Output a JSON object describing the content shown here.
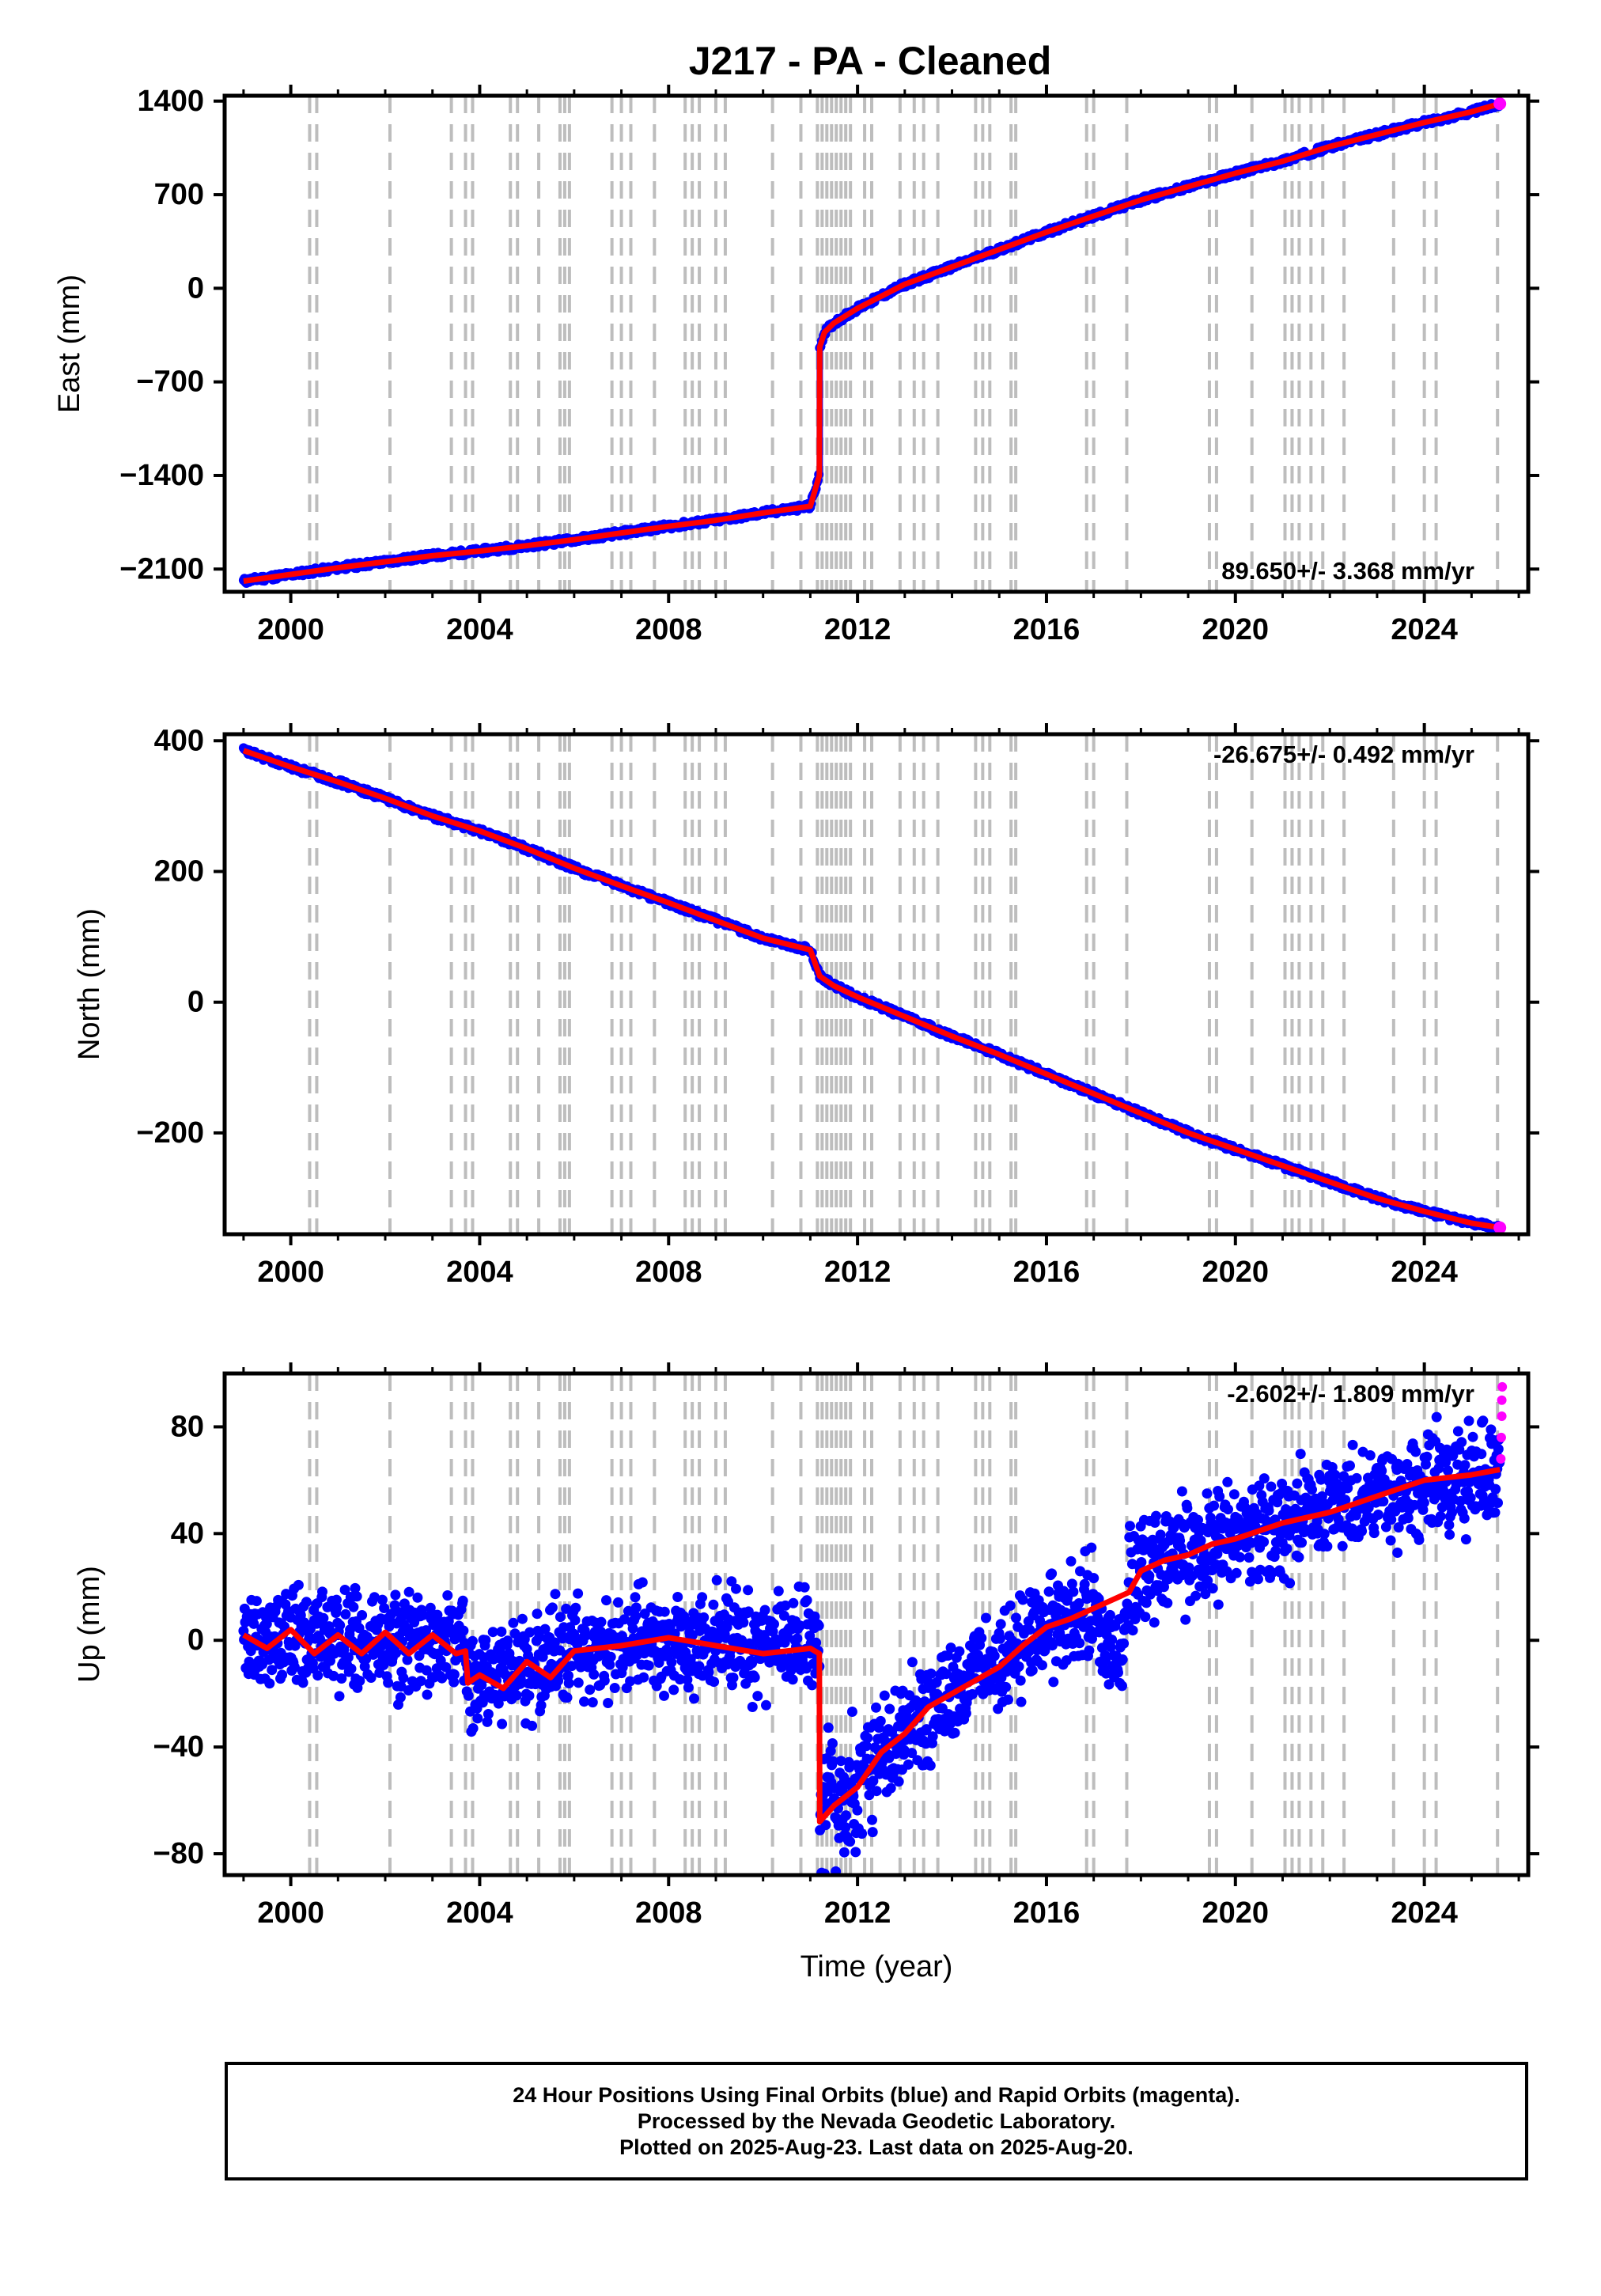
{
  "chart_data": [
    {
      "type": "scatter",
      "title": "J217  - PA - Cleaned",
      "ylabel": "East (mm)",
      "xlabel": "",
      "xlim": [
        1998.6,
        2026.2
      ],
      "ylim": [
        -2270,
        1440
      ],
      "yticks": [
        -2100,
        -1400,
        -700,
        0,
        700,
        1400
      ],
      "xticks": [
        2000,
        2004,
        2008,
        2012,
        2016,
        2020,
        2024
      ],
      "rate_label": "89.650+/- 3.368 mm/yr",
      "rate_position": "bottom-right",
      "grid": false,
      "series": [
        {
          "name": "",
          "color": "#0000ff",
          "style": "points",
          "x": [
            1999.0,
            2000.0,
            2001.0,
            2002.0,
            2003.0,
            2004.0,
            2005.0,
            2006.0,
            2007.0,
            2008.0,
            2009.0,
            2010.0,
            2011.0,
            2011.19,
            2011.2,
            2011.3,
            2011.5,
            2012.0,
            2013.0,
            2014.0,
            2015.0,
            2016.0,
            2017.0,
            2018.0,
            2019.0,
            2020.0,
            2021.0,
            2022.0,
            2023.0,
            2024.0,
            2025.0,
            2025.6
          ],
          "y": [
            -2190,
            -2140,
            -2090,
            -2045,
            -2000,
            -1965,
            -1925,
            -1880,
            -1830,
            -1780,
            -1735,
            -1680,
            -1630,
            -1400,
            -440,
            -330,
            -260,
            -150,
            30,
            160,
            290,
            420,
            540,
            660,
            760,
            860,
            950,
            1060,
            1150,
            1240,
            1320,
            1380
          ]
        },
        {
          "name": "",
          "color": "#ff0000",
          "style": "line",
          "x": [
            1999.0,
            2000.0,
            2001.0,
            2002.0,
            2003.0,
            2004.0,
            2005.0,
            2006.0,
            2007.0,
            2008.0,
            2009.0,
            2010.0,
            2011.0,
            2011.19,
            2011.2,
            2011.3,
            2011.5,
            2012.0,
            2013.0,
            2014.0,
            2015.0,
            2016.0,
            2017.0,
            2018.0,
            2019.0,
            2020.0,
            2021.0,
            2022.0,
            2023.0,
            2024.0,
            2025.0,
            2025.6
          ],
          "y": [
            -2190,
            -2140,
            -2090,
            -2045,
            -2000,
            -1965,
            -1925,
            -1880,
            -1830,
            -1780,
            -1735,
            -1680,
            -1630,
            -1400,
            -440,
            -330,
            -260,
            -150,
            30,
            160,
            290,
            420,
            540,
            660,
            760,
            860,
            950,
            1060,
            1150,
            1240,
            1320,
            1380
          ]
        }
      ]
    },
    {
      "type": "scatter",
      "title": "",
      "ylabel": "North (mm)",
      "xlabel": "",
      "xlim": [
        1998.6,
        2026.2
      ],
      "ylim": [
        -355,
        410
      ],
      "yticks": [
        -200,
        0,
        200,
        400
      ],
      "xticks": [
        2000,
        2004,
        2008,
        2012,
        2016,
        2020,
        2024
      ],
      "rate_label": "-26.675+/- 0.492 mm/yr",
      "rate_position": "top-right",
      "grid": false,
      "series": [
        {
          "name": "",
          "color": "#0000ff",
          "style": "points",
          "x": [
            1999.0,
            2000.0,
            2001.0,
            2002.0,
            2003.0,
            2004.0,
            2005.0,
            2006.0,
            2007.0,
            2008.0,
            2009.0,
            2010.0,
            2011.0,
            2011.2,
            2011.5,
            2012.0,
            2013.0,
            2014.0,
            2015.0,
            2016.0,
            2017.0,
            2018.0,
            2019.0,
            2020.0,
            2021.0,
            2022.0,
            2023.0,
            2024.0,
            2025.0,
            2025.6
          ],
          "y": [
            385,
            360,
            337,
            312,
            285,
            262,
            235,
            205,
            178,
            152,
            125,
            98,
            80,
            40,
            25,
            8,
            -22,
            -52,
            -80,
            -110,
            -140,
            -170,
            -200,
            -225,
            -250,
            -275,
            -300,
            -320,
            -338,
            -345
          ]
        },
        {
          "name": "",
          "color": "#ff0000",
          "style": "line",
          "x": [
            1999.0,
            2000.0,
            2001.0,
            2002.0,
            2003.0,
            2004.0,
            2005.0,
            2006.0,
            2007.0,
            2008.0,
            2009.0,
            2010.0,
            2011.0,
            2011.2,
            2011.5,
            2012.0,
            2013.0,
            2014.0,
            2015.0,
            2016.0,
            2017.0,
            2018.0,
            2019.0,
            2020.0,
            2021.0,
            2022.0,
            2023.0,
            2024.0,
            2025.0,
            2025.6
          ],
          "y": [
            385,
            360,
            337,
            312,
            285,
            262,
            235,
            205,
            178,
            152,
            125,
            98,
            80,
            40,
            25,
            8,
            -22,
            -52,
            -80,
            -110,
            -140,
            -170,
            -200,
            -225,
            -250,
            -275,
            -300,
            -320,
            -338,
            -345
          ]
        }
      ]
    },
    {
      "type": "scatter",
      "title": "",
      "ylabel": "Up (mm)",
      "xlabel": "Time (year)",
      "xlim": [
        1998.6,
        2026.2
      ],
      "ylim": [
        -88,
        100
      ],
      "yticks": [
        -80,
        -40,
        0,
        40,
        80
      ],
      "xticks": [
        2000,
        2004,
        2008,
        2012,
        2016,
        2020,
        2024
      ],
      "rate_label": "-2.602+/- 1.809 mm/yr",
      "rate_position": "top-right",
      "grid": false,
      "series": [
        {
          "name": "",
          "color": "#ff0000",
          "style": "line",
          "x": [
            1999.0,
            1999.5,
            2000.0,
            2000.5,
            2001.0,
            2001.5,
            2002.0,
            2002.5,
            2003.0,
            2003.5,
            2003.7,
            2003.75,
            2004.0,
            2004.5,
            2005.0,
            2005.5,
            2006.0,
            2007.0,
            2008.0,
            2009.0,
            2010.0,
            2011.0,
            2011.19,
            2011.2,
            2011.5,
            2012.0,
            2012.5,
            2013.0,
            2013.5,
            2014.0,
            2015.0,
            2015.5,
            2016.0,
            2016.5,
            2017.0,
            2017.5,
            2017.75,
            2018.0,
            2018.5,
            2019.0,
            2019.5,
            2020.0,
            2021.0,
            2022.0,
            2023.0,
            2024.0,
            2025.0,
            2025.6
          ],
          "y": [
            2,
            -3,
            4,
            -5,
            2,
            -5,
            3,
            -5,
            2,
            -5,
            -4,
            -16,
            -13,
            -18,
            -8,
            -14,
            -4,
            -2,
            1,
            -2,
            -5,
            -3,
            -5,
            -68,
            -62,
            -55,
            -42,
            -35,
            -25,
            -20,
            -10,
            -2,
            5,
            8,
            12,
            16,
            18,
            26,
            30,
            32,
            36,
            38,
            44,
            48,
            54,
            60,
            62,
            64
          ]
        },
        {
          "name": "",
          "color": "#0000ff",
          "style": "scatter-cloud",
          "x": [
            1999.0,
            2000.0,
            2001.0,
            2002.0,
            2003.0,
            2003.7,
            2003.75,
            2004.0,
            2005.0,
            2006.0,
            2007.0,
            2008.0,
            2009.0,
            2010.0,
            2011.0,
            2011.19,
            2011.2,
            2011.5,
            2012.0,
            2013.0,
            2014.0,
            2015.0,
            2016.0,
            2017.0,
            2017.2,
            2017.5,
            2017.75,
            2018.0,
            2019.0,
            2020.0,
            2021.0,
            2022.0,
            2023.0,
            2024.0,
            2025.0,
            2025.6
          ],
          "y": [
            2,
            0,
            0,
            -1,
            -1,
            -2,
            -15,
            -14,
            -10,
            -5,
            -1,
            0,
            -1,
            -3,
            -3,
            -4,
            -67,
            -62,
            -54,
            -35,
            -20,
            -8,
            4,
            12,
            2,
            -12,
            18,
            26,
            32,
            38,
            44,
            49,
            54,
            60,
            62,
            64
          ]
        },
        {
          "name": "",
          "color": "#ff00ff",
          "style": "points",
          "x": [
            2025.62,
            2025.63,
            2025.64,
            2025.64,
            2025.65
          ],
          "y": [
            68,
            76,
            84,
            90,
            95
          ]
        }
      ]
    }
  ],
  "vertical_markers": {
    "color": "#bdbdbd",
    "years": [
      2000.4,
      2000.55,
      2002.1,
      2003.4,
      2003.7,
      2003.85,
      2004.65,
      2004.8,
      2005.25,
      2005.7,
      2005.8,
      2005.9,
      2006.8,
      2007.0,
      2007.2,
      2007.7,
      2008.35,
      2008.5,
      2008.65,
      2009.0,
      2009.2,
      2010.2,
      2010.8,
      2011.15,
      2011.25,
      2011.35,
      2011.45,
      2011.55,
      2011.65,
      2011.75,
      2011.85,
      2012.15,
      2012.3,
      2012.9,
      2013.2,
      2013.4,
      2013.7,
      2014.5,
      2014.65,
      2014.8,
      2015.25,
      2015.35,
      2016.85,
      2017.0,
      2017.7,
      2019.45,
      2019.6,
      2020.35,
      2021.05,
      2021.2,
      2021.35,
      2021.6,
      2021.85,
      2022.3,
      2023.35,
      2024.0,
      2024.25,
      2025.55
    ]
  },
  "footer": {
    "line1": "24 Hour Positions Using Final Orbits (blue) and Rapid Orbits (magenta).",
    "line2": "Processed by the Nevada Geodetic Laboratory.",
    "line3": "Plotted on 2025-Aug-23. Last data on 2025-Aug-20."
  }
}
